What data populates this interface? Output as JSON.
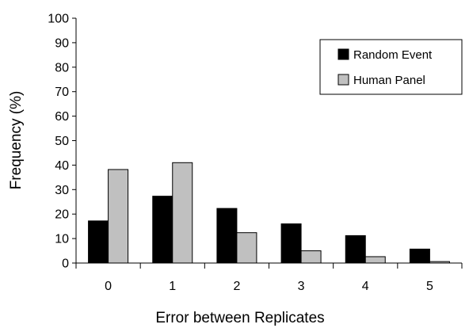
{
  "chart_data": {
    "type": "bar",
    "xlabel": "Error between Replicates",
    "ylabel": "Frequency (%)",
    "ylim": [
      0,
      100
    ],
    "yticks": [
      0,
      10,
      20,
      30,
      40,
      50,
      60,
      70,
      80,
      90,
      100
    ],
    "categories": [
      "0",
      "1",
      "2",
      "3",
      "4",
      "5"
    ],
    "series": [
      {
        "name": "Random Event",
        "color": "#000000",
        "values": [
          17.2,
          27.3,
          22.3,
          16,
          11.2,
          5.7
        ]
      },
      {
        "name": "Human Panel",
        "color": "#c0c0c0",
        "values": [
          38.2,
          41,
          12.4,
          5,
          2.6,
          0.6
        ]
      }
    ],
    "legend_position": "top-right",
    "grid": false
  }
}
